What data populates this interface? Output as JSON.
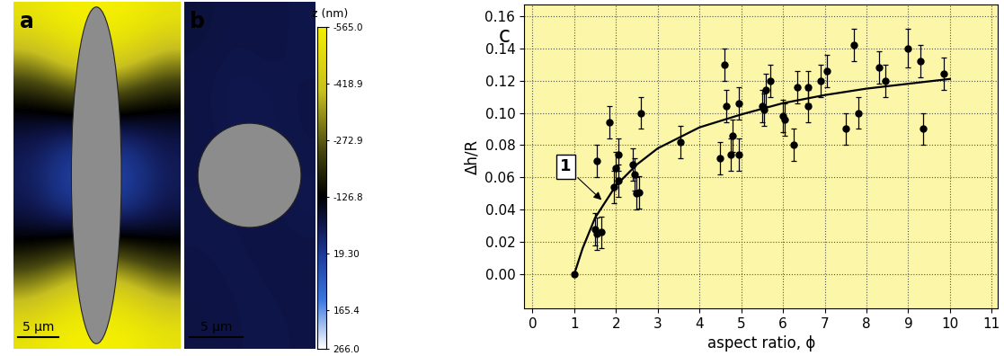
{
  "chart_data": [
    {
      "type": "heatmap",
      "panel_label": "a",
      "scale_bar_label": "5 μm",
      "cells": [
        [
          -520,
          -560,
          -565,
          -560,
          -520
        ],
        [
          -350,
          -450,
          -500,
          -450,
          -350
        ],
        [
          -150,
          -200,
          -250,
          -200,
          -150
        ],
        [
          -60,
          -20,
          0,
          -20,
          -60
        ],
        [
          -40,
          40,
          60,
          40,
          -40
        ],
        [
          -60,
          0,
          20,
          0,
          -60
        ],
        [
          -150,
          -200,
          -250,
          -200,
          -150
        ],
        [
          -350,
          -450,
          -500,
          -450,
          -350
        ],
        [
          -520,
          -560,
          -565,
          -560,
          -520
        ]
      ]
    },
    {
      "type": "heatmap",
      "panel_label": "b",
      "scale_bar_label": "5 μm",
      "cells": [
        [
          -70,
          -60,
          -65,
          -55
        ],
        [
          -60,
          -50,
          -55,
          -60
        ],
        [
          -65,
          -55,
          -50,
          -60
        ],
        [
          -55,
          -60,
          -65,
          -50
        ],
        [
          -60,
          -55,
          -60,
          -65
        ],
        [
          -65,
          -60,
          -55,
          -60
        ]
      ]
    },
    {
      "type": "scatter",
      "panel_label": "c",
      "x_label": "aspect ratio, ϕ",
      "y_label": "Δh/R",
      "xlim": [
        -0.2,
        11.15
      ],
      "ylim": [
        -0.021,
        0.167
      ],
      "xticks": [
        0,
        1,
        2,
        3,
        4,
        5,
        6,
        7,
        8,
        9,
        10,
        11
      ],
      "yticks": [
        {
          "value": 0.0,
          "label": "0.00"
        },
        {
          "value": 0.02,
          "label": "0.02"
        },
        {
          "value": 0.04,
          "label": "0.04"
        },
        {
          "value": 0.06,
          "label": "0.06"
        },
        {
          "value": 0.08,
          "label": "0.08"
        },
        {
          "value": 0.1,
          "label": "0.10"
        },
        {
          "value": 0.12,
          "label": "0.12"
        },
        {
          "value": 0.14,
          "label": "0.14"
        },
        {
          "value": 0.16,
          "label": "0.16"
        }
      ],
      "grid": true,
      "series": [
        {
          "type": "scatter",
          "color": "#000000",
          "marker": "circle",
          "x": [
            1.0,
            1.55,
            1.5,
            1.55,
            1.65,
            1.85,
            1.95,
            2.0,
            2.05,
            2.05,
            2.4,
            2.45,
            2.5,
            2.55,
            2.6,
            3.55,
            4.5,
            4.6,
            4.65,
            4.75,
            4.8,
            4.95,
            4.95,
            5.5,
            5.55,
            5.6,
            5.7,
            6.0,
            6.05,
            6.25,
            6.35,
            6.6,
            6.6,
            6.9,
            7.05,
            7.5,
            7.7,
            7.8,
            8.3,
            8.45,
            9.0,
            9.3,
            9.35,
            9.85
          ],
          "values": [
            0.0,
            0.07,
            0.028,
            0.025,
            0.026,
            0.094,
            0.054,
            0.066,
            0.074,
            0.058,
            0.068,
            0.062,
            0.05,
            0.051,
            0.1,
            0.082,
            0.072,
            0.13,
            0.104,
            0.074,
            0.086,
            0.074,
            0.106,
            0.104,
            0.102,
            0.114,
            0.12,
            0.098,
            0.096,
            0.08,
            0.116,
            0.104,
            0.116,
            0.12,
            0.126,
            0.09,
            0.142,
            0.1,
            0.128,
            0.12,
            0.14,
            0.132,
            0.09,
            0.124
          ],
          "errors": [
            0.0,
            0.01,
            0.01,
            0.01,
            0.01,
            0.01,
            0.01,
            0.01,
            0.01,
            0.01,
            0.01,
            0.01,
            0.01,
            0.01,
            0.01,
            0.01,
            0.01,
            0.01,
            0.01,
            0.01,
            0.01,
            0.01,
            0.01,
            0.01,
            0.01,
            0.01,
            0.01,
            0.01,
            0.01,
            0.01,
            0.01,
            0.01,
            0.01,
            0.01,
            0.01,
            0.01,
            0.01,
            0.01,
            0.01,
            0.01,
            0.012,
            0.01,
            0.01,
            0.01
          ]
        },
        {
          "type": "line",
          "color": "#000000",
          "line_style": "solid",
          "x": [
            1.0,
            1.2,
            1.5,
            2.0,
            2.5,
            3.0,
            4.0,
            5.0,
            6.0,
            7.0,
            8.0,
            9.0,
            10.0
          ],
          "values": [
            0.0,
            0.016,
            0.035,
            0.055,
            0.068,
            0.078,
            0.091,
            0.099,
            0.106,
            0.111,
            0.115,
            0.118,
            0.121
          ]
        }
      ],
      "annotations": [
        {
          "text": "1",
          "x": 1.7,
          "y": 0.045
        }
      ]
    }
  ],
  "colorbar": {
    "label": "z (nm)",
    "range": [
      266.0,
      -565.0
    ],
    "ticks": [
      {
        "value": -565.0,
        "label": "-565.0"
      },
      {
        "value": -418.9,
        "label": "-418.9"
      },
      {
        "value": -272.9,
        "label": "-272.9"
      },
      {
        "value": -126.8,
        "label": "-126.8"
      },
      {
        "value": 19.3,
        "label": "19.30"
      },
      {
        "value": 165.4,
        "label": "165.4"
      },
      {
        "value": 266.0,
        "label": "266.0"
      }
    ]
  }
}
